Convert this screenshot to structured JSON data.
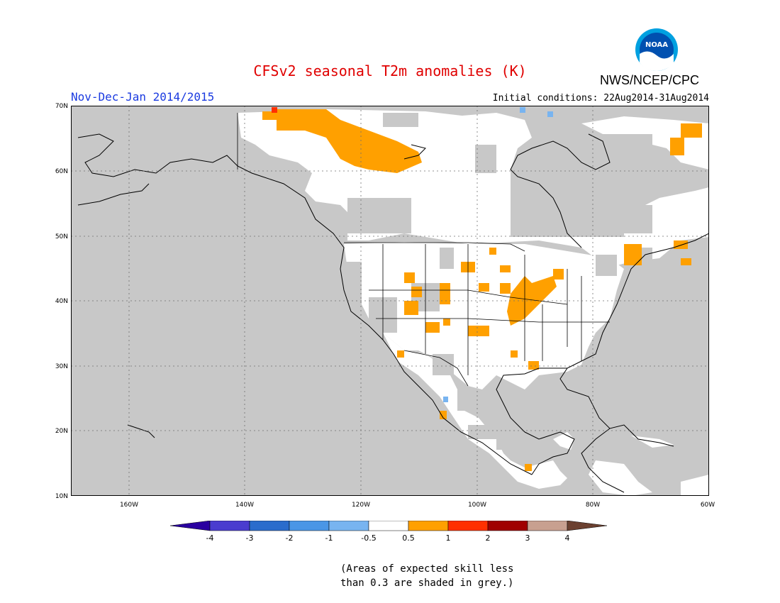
{
  "header": {
    "title": "CFSv2 seasonal T2m anomalies (K)",
    "period": "Nov-Dec-Jan 2014/2015",
    "initial_conditions": "Initial conditions: 22Aug2014-31Aug2014",
    "agency": "NWS/NCEP/CPC",
    "logo_text": "NOAA"
  },
  "map": {
    "lat_labels": [
      "70N",
      "60N",
      "50N",
      "40N",
      "30N",
      "20N",
      "10N"
    ],
    "lon_labels": [
      "160W",
      "140W",
      "120W",
      "100W",
      "80W",
      "60W"
    ],
    "colors": {
      "ocean_grey": "#c8c8c8",
      "land_white": "#ffffff",
      "anomaly_orange": "#ffa000",
      "anomaly_red": "#ff3000",
      "anomaly_lightblue": "#78b4f0"
    }
  },
  "legend": {
    "labels": [
      "-4",
      "-3",
      "-2",
      "-1",
      "-0.5",
      "0.5",
      "1",
      "2",
      "3",
      "4"
    ],
    "colors": [
      "#2a00a0",
      "#4a3ccf",
      "#2a6ccc",
      "#4a96e6",
      "#78b4f0",
      "#ffffff",
      "#ffa000",
      "#ff3000",
      "#a00000",
      "#c8a090",
      "#6b4030"
    ]
  },
  "footnote": {
    "line1": "(Areas of expected skill less",
    "line2": "than 0.3 are shaded in grey.)"
  }
}
